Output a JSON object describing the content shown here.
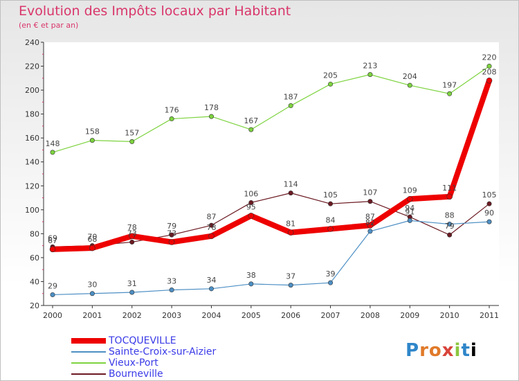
{
  "chart_data": {
    "type": "line",
    "title": "Evolution des Impôts locaux par Habitant",
    "subtitle": "(en € et par an)",
    "x": [
      "2000",
      "2001",
      "2002",
      "2003",
      "2004",
      "2005",
      "2006",
      "2007",
      "2008",
      "2009",
      "2010",
      "2011"
    ],
    "ylim": [
      20,
      240
    ],
    "yticks": [
      20,
      40,
      60,
      80,
      100,
      120,
      140,
      160,
      180,
      200,
      220,
      240
    ],
    "grid": false,
    "legend_position": "bottom-left",
    "series": [
      {
        "name": "TOCQUEVILLE",
        "color": "#ee0000",
        "values": [
          67,
          68,
          78,
          73,
          78,
          95,
          81,
          84,
          87,
          109,
          111,
          208
        ]
      },
      {
        "name": "Sainte-Croix-sur-Aizier",
        "color": "#4d8fc4",
        "values": [
          29,
          30,
          31,
          33,
          34,
          38,
          37,
          39,
          82,
          91,
          88,
          90
        ]
      },
      {
        "name": "Vieux-Port",
        "color": "#7dd33f",
        "values": [
          148,
          158,
          157,
          176,
          178,
          167,
          187,
          205,
          213,
          204,
          197,
          220
        ]
      },
      {
        "name": "Bourneville",
        "color": "#6b1a22",
        "values": [
          69,
          70,
          73,
          79,
          87,
          106,
          114,
          105,
          107,
          94,
          79,
          105
        ]
      }
    ]
  },
  "logo": {
    "letters": [
      "P",
      "r",
      "o",
      "x",
      "i",
      "t",
      "i"
    ]
  }
}
